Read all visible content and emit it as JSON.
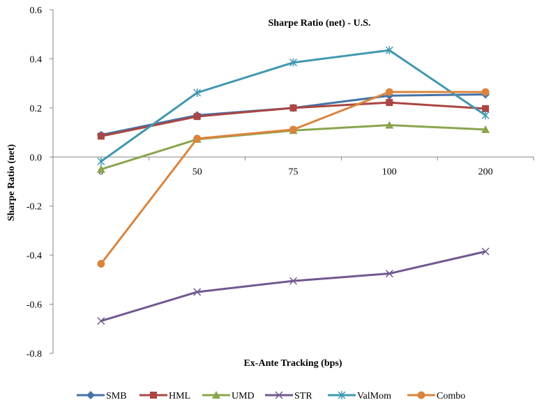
{
  "chart_data": {
    "type": "line",
    "title": "Sharpe Ratio (net) - U.S.",
    "xlabel": "Ex-Ante Tracking (bps)",
    "ylabel": "Sharpe Ratio (net)",
    "categories": [
      "0",
      "50",
      "75",
      "100",
      "200"
    ],
    "ylim": [
      -0.8,
      0.6
    ],
    "yticks": [
      "-0.8",
      "-0.6",
      "-0.4",
      "-0.2",
      "0.0",
      "0.2",
      "0.4",
      "0.6"
    ],
    "ytick_values": [
      -0.8,
      -0.6,
      -0.4,
      -0.2,
      0.0,
      0.2,
      0.4,
      0.6
    ],
    "grid": false,
    "legend_position": "bottom",
    "series": [
      {
        "name": "SMB",
        "values": [
          0.09,
          0.17,
          0.2,
          0.25,
          0.255
        ],
        "color": "#4572A7",
        "marker": "diamond"
      },
      {
        "name": "HML",
        "values": [
          0.085,
          0.165,
          0.2,
          0.222,
          0.197
        ],
        "color": "#AA4643",
        "marker": "square"
      },
      {
        "name": "UMD",
        "values": [
          -0.05,
          0.072,
          0.108,
          0.13,
          0.112
        ],
        "color": "#89A54E",
        "marker": "triangle"
      },
      {
        "name": "STR",
        "values": [
          -0.668,
          -0.55,
          -0.505,
          -0.475,
          -0.385
        ],
        "color": "#71588F",
        "marker": "x"
      },
      {
        "name": "ValMom",
        "values": [
          -0.018,
          0.262,
          0.385,
          0.435,
          0.17
        ],
        "color": "#4198AF",
        "marker": "star"
      },
      {
        "name": "Combo",
        "values": [
          -0.435,
          0.075,
          0.112,
          0.265,
          0.265
        ],
        "color": "#DB843D",
        "marker": "circle"
      }
    ]
  }
}
